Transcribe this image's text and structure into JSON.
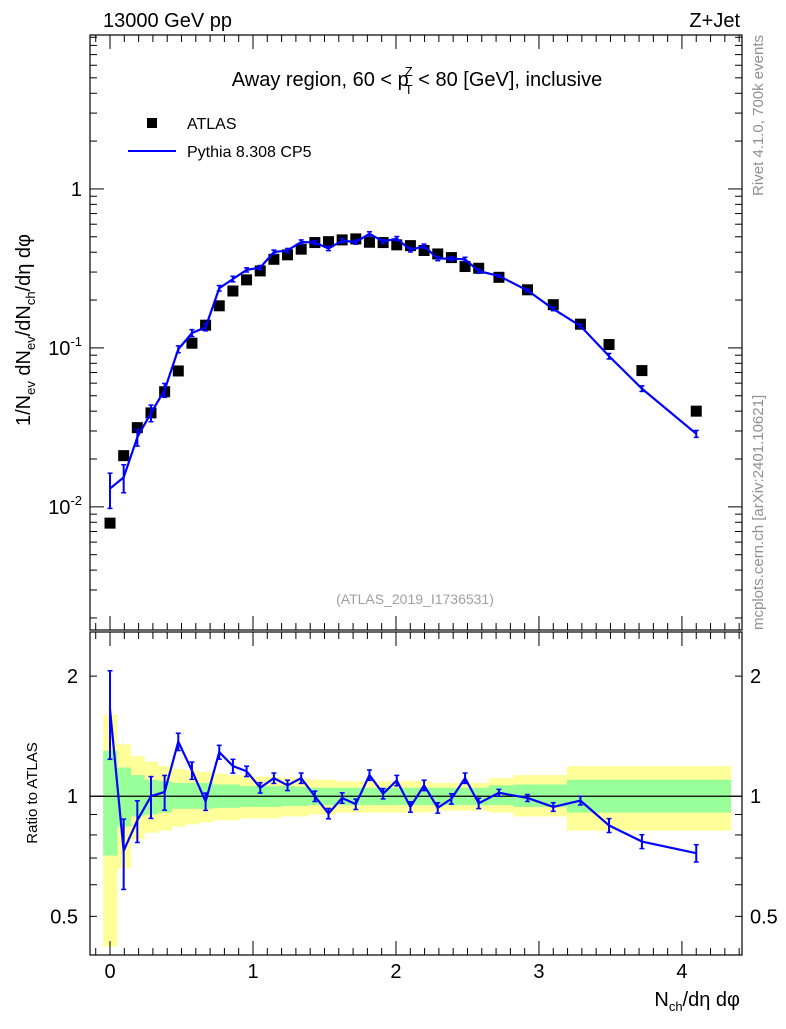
{
  "header": {
    "left": "13000 GeV pp",
    "right": "Z+Jet"
  },
  "side_labels": {
    "rivet": "Rivet 4.1.0,  700k events",
    "mcplots": "mcplots.cern.ch [arXiv:2401.10621]"
  },
  "analysis_id": "(ATLAS_2019_I1736531)",
  "colors": {
    "data": "#000000",
    "mc": "#0000ff",
    "band_inner": "#99ff99",
    "band_outer": "#ffff99"
  },
  "chart_data": [
    {
      "type": "scatter",
      "title": "Away region, 60 < p_T^Z < 80 [GeV], inclusive",
      "title_parts": {
        "pre": "Away region, 60 < p",
        "sup": "Z",
        "sub": "T",
        "post": " < 80 [GeV], inclusive"
      },
      "ylabel": "1/N_ev dN_ev/dN_ch/dη dφ",
      "yscale": "log",
      "ylim": [
        0.00168,
        9.3
      ],
      "xlim": [
        -0.14,
        4.42
      ],
      "yticks": [
        {
          "v": 0.01,
          "label": "10^-2"
        },
        {
          "v": 0.1,
          "label": "10^-1"
        },
        {
          "v": 1,
          "label": "1"
        }
      ],
      "legend": {
        "placement": "top-left",
        "entries": [
          "ATLAS",
          "Pythia 8.308 CP5"
        ]
      },
      "x": [
        0,
        0.0955,
        0.191,
        0.2865,
        0.382,
        0.4775,
        0.573,
        0.6685,
        0.764,
        0.8595,
        0.955,
        1.0505,
        1.146,
        1.2415,
        1.337,
        1.4325,
        1.528,
        1.6235,
        1.719,
        1.8145,
        1.91,
        2.0055,
        2.101,
        2.1965,
        2.292,
        2.3875,
        2.483,
        2.5785,
        2.72,
        2.92,
        3.1,
        3.29,
        3.49,
        3.72,
        4.1
      ],
      "series": [
        {
          "name": "ATLAS",
          "values": [
            0.0079,
            0.021,
            0.0315,
            0.039,
            0.053,
            0.0716,
            0.107,
            0.139,
            0.184,
            0.228,
            0.268,
            0.305,
            0.361,
            0.385,
            0.418,
            0.46,
            0.466,
            0.478,
            0.485,
            0.462,
            0.46,
            0.445,
            0.44,
            0.41,
            0.39,
            0.37,
            0.325,
            0.317,
            0.278,
            0.232,
            0.187,
            0.141,
            0.105,
            0.072,
            0.04
          ]
        },
        {
          "name": "Pythia 8.308 CP5",
          "ratio": [
            1.65,
            0.73,
            0.87,
            1.0,
            1.025,
            1.37,
            1.16,
            0.97,
            1.29,
            1.19,
            1.155,
            1.05,
            1.11,
            1.065,
            1.11,
            1.0,
            0.905,
            0.99,
            0.955,
            1.13,
            1.015,
            1.095,
            0.94,
            1.065,
            0.935,
            0.985,
            1.11,
            0.96,
            1.02,
            0.99,
            0.94,
            0.975,
            0.845,
            0.77,
            0.72
          ],
          "rel_err": [
            0.25,
            0.2,
            0.12,
            0.12,
            0.1,
            0.05,
            0.05,
            0.05,
            0.04,
            0.04,
            0.03,
            0.03,
            0.03,
            0.03,
            0.03,
            0.03,
            0.03,
            0.03,
            0.03,
            0.03,
            0.03,
            0.03,
            0.03,
            0.03,
            0.03,
            0.03,
            0.03,
            0.03,
            0.02,
            0.02,
            0.025,
            0.025,
            0.04,
            0.04,
            0.05
          ]
        }
      ]
    },
    {
      "type": "line",
      "ylabel": "Ratio to ATLAS",
      "xlabel": "N_ch/dη dφ",
      "xlabel_parts": {
        "pre": "N",
        "sub": "ch",
        "post": "/dη dφ"
      },
      "yscale": "log",
      "ylim": [
        0.4,
        2.58
      ],
      "yticks": [
        {
          "v": 0.5,
          "label": "0.5"
        },
        {
          "v": 1,
          "label": "1"
        },
        {
          "v": 2,
          "label": "2"
        }
      ],
      "xticks": [
        {
          "v": 0,
          "label": "0"
        },
        {
          "v": 1,
          "label": "1"
        },
        {
          "v": 2,
          "label": "2"
        },
        {
          "v": 3,
          "label": "3"
        },
        {
          "v": 4,
          "label": "4"
        }
      ],
      "band_inner": {
        "hi": [
          1.3,
          1.18,
          1.13,
          1.1,
          1.09,
          1.08,
          1.08,
          1.08,
          1.07,
          1.07,
          1.06,
          1.06,
          1.06,
          1.06,
          1.055,
          1.05,
          1.05,
          1.05,
          1.05,
          1.05,
          1.05,
          1.05,
          1.05,
          1.05,
          1.05,
          1.05,
          1.05,
          1.05,
          1.065,
          1.07,
          1.07,
          1.1,
          1.1,
          1.1,
          1.1
        ],
        "lo": [
          0.71,
          0.84,
          0.89,
          0.9,
          0.91,
          0.93,
          0.93,
          0.93,
          0.935,
          0.935,
          0.94,
          0.94,
          0.94,
          0.945,
          0.945,
          0.95,
          0.95,
          0.95,
          0.95,
          0.95,
          0.95,
          0.95,
          0.95,
          0.95,
          0.95,
          0.95,
          0.95,
          0.95,
          0.95,
          0.94,
          0.94,
          0.91,
          0.91,
          0.91,
          0.91
        ]
      },
      "band_outer": {
        "hi": [
          1.6,
          1.35,
          1.26,
          1.22,
          1.19,
          1.17,
          1.16,
          1.15,
          1.14,
          1.13,
          1.13,
          1.12,
          1.12,
          1.11,
          1.11,
          1.1,
          1.1,
          1.09,
          1.09,
          1.09,
          1.09,
          1.09,
          1.09,
          1.09,
          1.08,
          1.08,
          1.08,
          1.08,
          1.11,
          1.13,
          1.13,
          1.19,
          1.19,
          1.19,
          1.19
        ],
        "lo": [
          0.42,
          0.66,
          0.78,
          0.81,
          0.82,
          0.84,
          0.85,
          0.86,
          0.87,
          0.87,
          0.88,
          0.88,
          0.88,
          0.89,
          0.89,
          0.9,
          0.9,
          0.91,
          0.91,
          0.91,
          0.91,
          0.91,
          0.91,
          0.91,
          0.92,
          0.92,
          0.92,
          0.92,
          0.91,
          0.89,
          0.89,
          0.82,
          0.82,
          0.82,
          0.82
        ]
      }
    }
  ]
}
